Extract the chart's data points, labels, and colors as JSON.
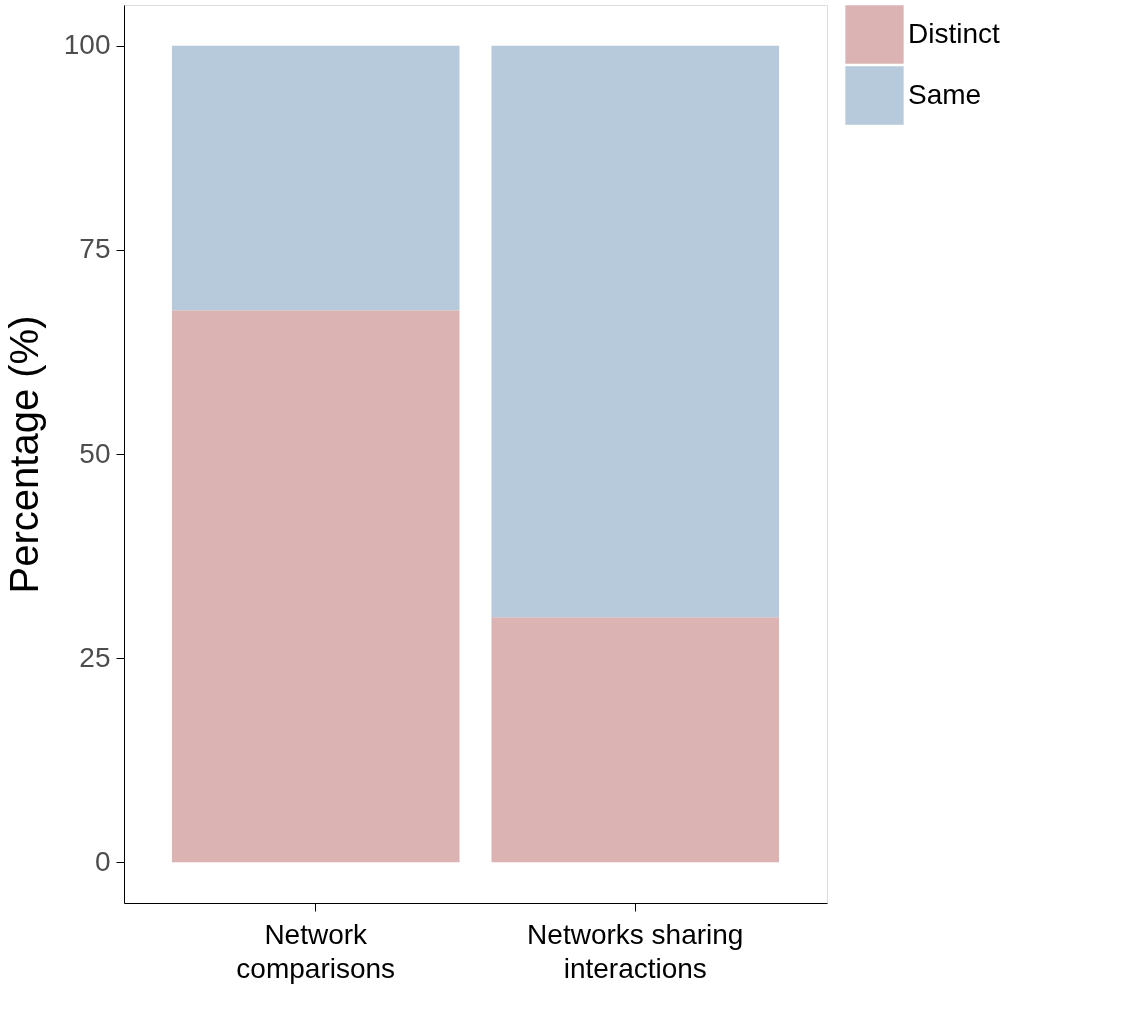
{
  "chart_data": {
    "type": "bar",
    "stacked": true,
    "ylabel": "Percentage (%)",
    "categories": [
      "Network\ncomparisons",
      "Networks sharing\ninteractions"
    ],
    "series": [
      {
        "name": "Distinct",
        "color": "#dbb3b3",
        "values": [
          67.6,
          30
        ]
      },
      {
        "name": "Same",
        "color": "#b7cadb",
        "values": [
          32.4,
          70
        ]
      }
    ],
    "ylim": [
      -5,
      105
    ],
    "yticks": [
      0,
      25,
      50,
      75,
      100
    ],
    "grid": false,
    "legend": "right"
  }
}
